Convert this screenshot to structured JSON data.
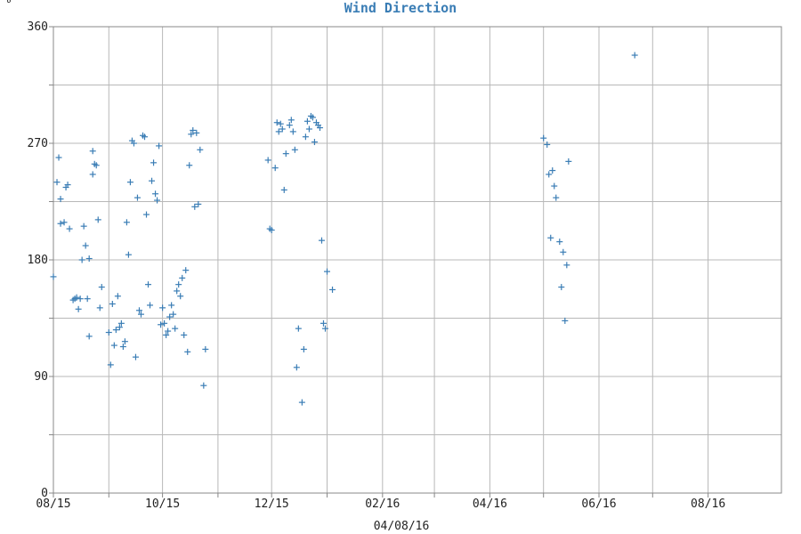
{
  "unit_label": "°",
  "chart_data": {
    "type": "scatter",
    "title": "Wind Direction",
    "xlabel": "04/08/16",
    "ylabel": "",
    "x_axis": "date",
    "xlim": [
      "2015-08-15",
      "2016-09-25"
    ],
    "ylim": [
      0,
      360
    ],
    "x_ticks": [
      "2015-08-15",
      "2015-09-15",
      "2015-10-15",
      "2015-11-15",
      "2015-12-15",
      "2016-01-15",
      "2016-02-15",
      "2016-03-15",
      "2016-04-15",
      "2016-05-15",
      "2016-06-15",
      "2016-07-15",
      "2016-08-15"
    ],
    "x_tick_labels": [
      "08/15",
      "",
      "10/15",
      "",
      "12/15",
      "",
      "02/16",
      "",
      "04/16",
      "",
      "06/16",
      "",
      "08/16"
    ],
    "y_ticks": [
      0,
      45,
      90,
      135,
      180,
      225,
      270,
      315,
      360
    ],
    "y_tick_labels": [
      "0",
      "",
      "90",
      "",
      "180",
      "",
      "270",
      "",
      "360"
    ],
    "grid": true,
    "marker": "+",
    "color": "#3a7db5",
    "series": [
      {
        "points": [
          [
            "2015-08-15",
            167
          ],
          [
            "2015-08-17",
            240
          ],
          [
            "2015-08-18",
            259
          ],
          [
            "2015-08-19",
            227
          ],
          [
            "2015-08-19",
            208
          ],
          [
            "2015-08-21",
            209
          ],
          [
            "2015-08-22",
            236
          ],
          [
            "2015-08-23",
            238
          ],
          [
            "2015-08-24",
            204
          ],
          [
            "2015-08-26",
            149
          ],
          [
            "2015-08-27",
            150
          ],
          [
            "2015-08-28",
            151
          ],
          [
            "2015-08-29",
            142
          ],
          [
            "2015-08-30",
            150
          ],
          [
            "2015-08-31",
            180
          ],
          [
            "2015-09-01",
            206
          ],
          [
            "2015-09-02",
            191
          ],
          [
            "2015-09-03",
            150
          ],
          [
            "2015-09-04",
            121
          ],
          [
            "2015-09-04",
            181
          ],
          [
            "2015-09-06",
            264
          ],
          [
            "2015-09-06",
            246
          ],
          [
            "2015-09-07",
            254
          ],
          [
            "2015-09-08",
            253
          ],
          [
            "2015-09-09",
            211
          ],
          [
            "2015-09-10",
            143
          ],
          [
            "2015-09-11",
            159
          ],
          [
            "2015-09-15",
            124
          ],
          [
            "2015-09-16",
            99
          ],
          [
            "2015-09-17",
            146
          ],
          [
            "2015-09-18",
            114
          ],
          [
            "2015-09-19",
            126
          ],
          [
            "2015-09-20",
            152
          ],
          [
            "2015-09-21",
            128
          ],
          [
            "2015-09-22",
            131
          ],
          [
            "2015-09-23",
            113
          ],
          [
            "2015-09-24",
            117
          ],
          [
            "2015-09-25",
            209
          ],
          [
            "2015-09-26",
            184
          ],
          [
            "2015-09-27",
            240
          ],
          [
            "2015-09-28",
            272
          ],
          [
            "2015-09-29",
            270
          ],
          [
            "2015-09-30",
            105
          ],
          [
            "2015-10-01",
            228
          ],
          [
            "2015-10-02",
            141
          ],
          [
            "2015-10-03",
            138
          ],
          [
            "2015-10-04",
            276
          ],
          [
            "2015-10-05",
            275
          ],
          [
            "2015-10-06",
            215
          ],
          [
            "2015-10-07",
            161
          ],
          [
            "2015-10-08",
            145
          ],
          [
            "2015-10-09",
            241
          ],
          [
            "2015-10-10",
            255
          ],
          [
            "2015-10-11",
            231
          ],
          [
            "2015-10-12",
            226
          ],
          [
            "2015-10-13",
            268
          ],
          [
            "2015-10-14",
            130
          ],
          [
            "2015-10-15",
            143
          ],
          [
            "2015-10-16",
            131
          ],
          [
            "2015-10-17",
            122
          ],
          [
            "2015-10-18",
            125
          ],
          [
            "2015-10-19",
            136
          ],
          [
            "2015-10-20",
            145
          ],
          [
            "2015-10-21",
            138
          ],
          [
            "2015-10-22",
            127
          ],
          [
            "2015-10-23",
            156
          ],
          [
            "2015-10-24",
            161
          ],
          [
            "2015-10-25",
            152
          ],
          [
            "2015-10-26",
            166
          ],
          [
            "2015-10-27",
            122
          ],
          [
            "2015-10-28",
            172
          ],
          [
            "2015-10-29",
            109
          ],
          [
            "2015-10-30",
            253
          ],
          [
            "2015-10-31",
            277
          ],
          [
            "2015-11-01",
            280
          ],
          [
            "2015-11-02",
            221
          ],
          [
            "2015-11-03",
            278
          ],
          [
            "2015-11-04",
            223
          ],
          [
            "2015-11-05",
            265
          ],
          [
            "2015-11-07",
            83
          ],
          [
            "2015-11-08",
            111
          ],
          [
            "2015-12-13",
            257
          ],
          [
            "2015-12-14",
            204
          ],
          [
            "2015-12-15",
            203
          ],
          [
            "2015-12-17",
            251
          ],
          [
            "2015-12-18",
            286
          ],
          [
            "2015-12-19",
            279
          ],
          [
            "2015-12-20",
            285
          ],
          [
            "2015-12-21",
            281
          ],
          [
            "2015-12-22",
            234
          ],
          [
            "2015-12-23",
            262
          ],
          [
            "2015-12-25",
            284
          ],
          [
            "2015-12-26",
            288
          ],
          [
            "2015-12-27",
            279
          ],
          [
            "2015-12-28",
            265
          ],
          [
            "2015-12-29",
            97
          ],
          [
            "2015-12-30",
            127
          ],
          [
            "2016-01-01",
            70
          ],
          [
            "2016-01-02",
            111
          ],
          [
            "2016-01-03",
            275
          ],
          [
            "2016-01-04",
            287
          ],
          [
            "2016-01-05",
            281
          ],
          [
            "2016-01-06",
            291
          ],
          [
            "2016-01-07",
            290
          ],
          [
            "2016-01-08",
            271
          ],
          [
            "2016-01-09",
            286
          ],
          [
            "2016-01-10",
            284
          ],
          [
            "2016-01-11",
            282
          ],
          [
            "2016-01-12",
            195
          ],
          [
            "2016-01-13",
            131
          ],
          [
            "2016-01-14",
            127
          ],
          [
            "2016-01-15",
            171
          ],
          [
            "2016-01-18",
            157
          ],
          [
            "2016-05-15",
            274
          ],
          [
            "2016-05-17",
            269
          ],
          [
            "2016-05-18",
            246
          ],
          [
            "2016-05-19",
            197
          ],
          [
            "2016-05-20",
            249
          ],
          [
            "2016-05-21",
            237
          ],
          [
            "2016-05-22",
            228
          ],
          [
            "2016-05-24",
            194
          ],
          [
            "2016-05-25",
            159
          ],
          [
            "2016-05-26",
            186
          ],
          [
            "2016-05-27",
            133
          ],
          [
            "2016-05-28",
            176
          ],
          [
            "2016-05-29",
            256
          ],
          [
            "2016-07-05",
            338
          ]
        ]
      }
    ]
  }
}
